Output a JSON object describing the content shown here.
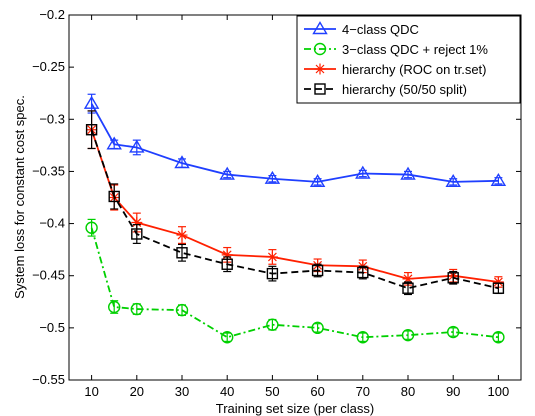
{
  "chart_data": {
    "type": "line",
    "xlabel": "Training set size (per class)",
    "ylabel": "System loss for constant cost spec.",
    "x": [
      10,
      15,
      20,
      30,
      40,
      50,
      60,
      70,
      80,
      90,
      100
    ],
    "xticks": [
      10,
      20,
      30,
      40,
      50,
      60,
      70,
      80,
      90,
      100
    ],
    "xtick_labels": [
      "10",
      "20",
      "30",
      "40",
      "50",
      "60",
      "70",
      "80",
      "90",
      "100"
    ],
    "yticks": [
      -0.55,
      -0.5,
      -0.45,
      -0.4,
      -0.35,
      -0.3,
      -0.25,
      -0.2
    ],
    "ytick_labels": [
      "−0.55",
      "−0.5",
      "−0.45",
      "−0.4",
      "−0.35",
      "−0.3",
      "−0.25",
      "−0.2"
    ],
    "xlim": [
      5,
      105
    ],
    "ylim": [
      -0.55,
      -0.2
    ],
    "grid": false,
    "legend_position": "top-right",
    "series": [
      {
        "name": "4−class QDC",
        "color": "#1f3fff",
        "line_style": "solid",
        "marker": "triangle",
        "values": [
          -0.285,
          -0.324,
          -0.327,
          -0.342,
          -0.353,
          -0.357,
          -0.36,
          -0.352,
          -0.353,
          -0.36,
          -0.359
        ],
        "errors": [
          0.009,
          0.004,
          0.007,
          0.004,
          0.003,
          0.003,
          0.003,
          0.003,
          0.003,
          0.003,
          0.003
        ]
      },
      {
        "name": "3−class QDC + reject 1%",
        "color": "#00d000",
        "line_style": "dashdot",
        "marker": "circle",
        "values": [
          -0.404,
          -0.48,
          -0.482,
          -0.483,
          -0.509,
          -0.497,
          -0.5,
          -0.509,
          -0.507,
          -0.504,
          -0.509
        ],
        "errors": [
          0.008,
          0.006,
          0.005,
          0.005,
          0.004,
          0.005,
          0.004,
          0.004,
          0.004,
          0.004,
          0.004
        ]
      },
      {
        "name": "hierarchy (ROC on tr.set)",
        "color": "#ff2000",
        "line_style": "solid",
        "marker": "star",
        "values": [
          -0.31,
          -0.375,
          -0.399,
          -0.411,
          -0.43,
          -0.432,
          -0.44,
          -0.441,
          -0.453,
          -0.45,
          -0.456
        ],
        "errors": [
          0.018,
          0.012,
          0.009,
          0.008,
          0.007,
          0.007,
          0.006,
          0.006,
          0.006,
          0.006,
          0.005
        ]
      },
      {
        "name": "hierarchy (50/50 split)",
        "color": "#000000",
        "line_style": "dashed",
        "marker": "square",
        "values": [
          -0.31,
          -0.374,
          -0.41,
          -0.428,
          -0.439,
          -0.448,
          -0.445,
          -0.447,
          -0.462,
          -0.452,
          -0.462
        ],
        "errors": [
          0.018,
          0.012,
          0.009,
          0.008,
          0.007,
          0.007,
          0.006,
          0.006,
          0.006,
          0.006,
          0.005
        ]
      }
    ]
  }
}
